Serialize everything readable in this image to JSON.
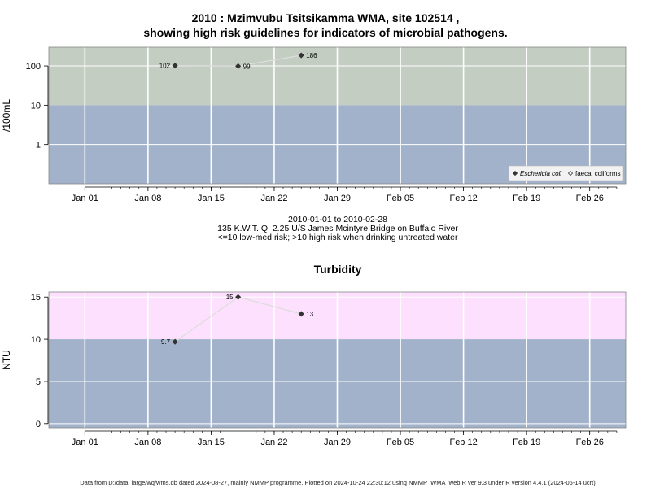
{
  "title_line1": "2010 : Mzimvubu Tsitsikamma WMA, site 102514 ,",
  "title_line2": "showing high risk guidelines for indicators of microbial pathogens.",
  "subtitle": {
    "date_range": "2010-01-01 to 2010-02-28",
    "location": "135 K.W.T. Q. 2.25 U/S James Mcintyre Bridge on Buffalo River",
    "risk_note": "<=10 low-med risk; >10 high risk when drinking untreated water"
  },
  "footer": "Data from D:/data_large/wq/wms.db dated 2024-08-27, mainly NMMP programme. Plotted on 2024-10-24 22:30:12 using NMMP_WMA_web.R ver 9.3 under R version 4.4.1 (2024-06-14 ucrt)",
  "colors": {
    "high_risk_green": "#c3cdc2",
    "low_risk_blue": "#a2b2ca",
    "high_risk_pink": "#fde0fd",
    "line": "#dddddd",
    "point": "#333333"
  },
  "chart_data": [
    {
      "type": "line",
      "title": "",
      "xlabel": "",
      "ylabel": "/100mL",
      "yscale": "log",
      "ylim": [
        0.1,
        300
      ],
      "y_ticks": [
        1,
        10,
        100
      ],
      "y_tick_labels": [
        "1",
        "10",
        "100"
      ],
      "xlim": [
        "2009-12-28",
        "2010-03-02"
      ],
      "x_ticks": [
        "2010-01-01",
        "2010-01-08",
        "2010-01-15",
        "2010-01-22",
        "2010-01-29",
        "2010-02-05",
        "2010-02-12",
        "2010-02-19",
        "2010-02-26"
      ],
      "x_tick_labels": [
        "Jan 01",
        "Jan 08",
        "Jan 15",
        "Jan 22",
        "Jan 29",
        "Feb 05",
        "Feb 12",
        "Feb 19",
        "Feb 26"
      ],
      "threshold": 10,
      "grid": true,
      "legend_position": "bottom-right",
      "series": [
        {
          "name": "Eschericia coli",
          "marker": "filled-diamond",
          "x": [
            "2010-01-11",
            "2010-01-18",
            "2010-01-25"
          ],
          "values": [
            102,
            99,
            186
          ],
          "labels": [
            "102",
            "99",
            "186"
          ]
        },
        {
          "name": "faecal coliforms",
          "marker": "open-diamond",
          "x": [],
          "values": [],
          "labels": []
        }
      ]
    },
    {
      "type": "line",
      "title": "Turbidity",
      "xlabel": "",
      "ylabel": "NTU",
      "yscale": "linear",
      "ylim": [
        -0.5,
        15.6
      ],
      "y_ticks": [
        0,
        5,
        10,
        15
      ],
      "y_tick_labels": [
        "0",
        "5",
        "10",
        "15"
      ],
      "xlim": [
        "2009-12-28",
        "2010-03-02"
      ],
      "x_ticks": [
        "2010-01-01",
        "2010-01-08",
        "2010-01-15",
        "2010-01-22",
        "2010-01-29",
        "2010-02-05",
        "2010-02-12",
        "2010-02-19",
        "2010-02-26"
      ],
      "x_tick_labels": [
        "Jan 01",
        "Jan 08",
        "Jan 15",
        "Jan 22",
        "Jan 29",
        "Feb 05",
        "Feb 12",
        "Feb 19",
        "Feb 26"
      ],
      "threshold": 10,
      "grid": true,
      "series": [
        {
          "name": "",
          "marker": "filled-diamond",
          "x": [
            "2010-01-11",
            "2010-01-18",
            "2010-01-25"
          ],
          "values": [
            9.7,
            15,
            13
          ],
          "labels": [
            "9.7",
            "15",
            "13"
          ],
          "label_side": [
            "left",
            "left",
            "right"
          ]
        }
      ]
    }
  ]
}
